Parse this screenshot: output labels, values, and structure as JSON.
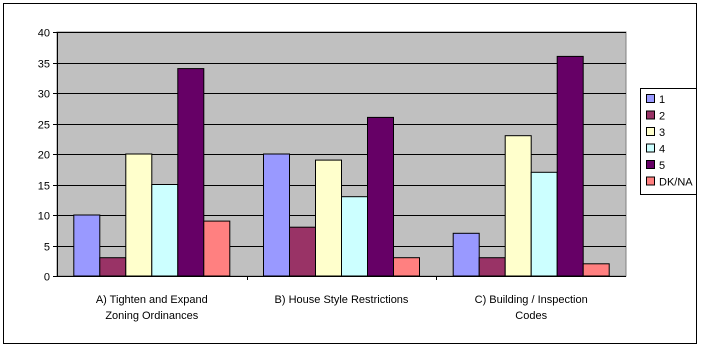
{
  "chart_data": {
    "type": "bar",
    "categories": [
      [
        "A) Tighten and Expand",
        "Zoning Ordinances"
      ],
      [
        "B) House Style Restrictions"
      ],
      [
        "C) Building / Inspection",
        "Codes"
      ]
    ],
    "series": [
      {
        "name": "1",
        "values": [
          10,
          20,
          7
        ],
        "color": "#9999ff"
      },
      {
        "name": "2",
        "values": [
          3,
          8,
          3
        ],
        "color": "#993366"
      },
      {
        "name": "3",
        "values": [
          20,
          19,
          23
        ],
        "color": "#ffffcc"
      },
      {
        "name": "4",
        "values": [
          15,
          13,
          17
        ],
        "color": "#ccffff"
      },
      {
        "name": "5",
        "values": [
          34,
          26,
          36
        ],
        "color": "#660066"
      },
      {
        "name": "DK/NA",
        "values": [
          9,
          3,
          2
        ],
        "color": "#ff8080"
      }
    ],
    "ylim": [
      0,
      40
    ],
    "yticks": [
      0,
      5,
      10,
      15,
      20,
      25,
      30,
      35,
      40
    ],
    "grid": true,
    "legend": "right",
    "plot_bg": "#c0c0c0"
  }
}
